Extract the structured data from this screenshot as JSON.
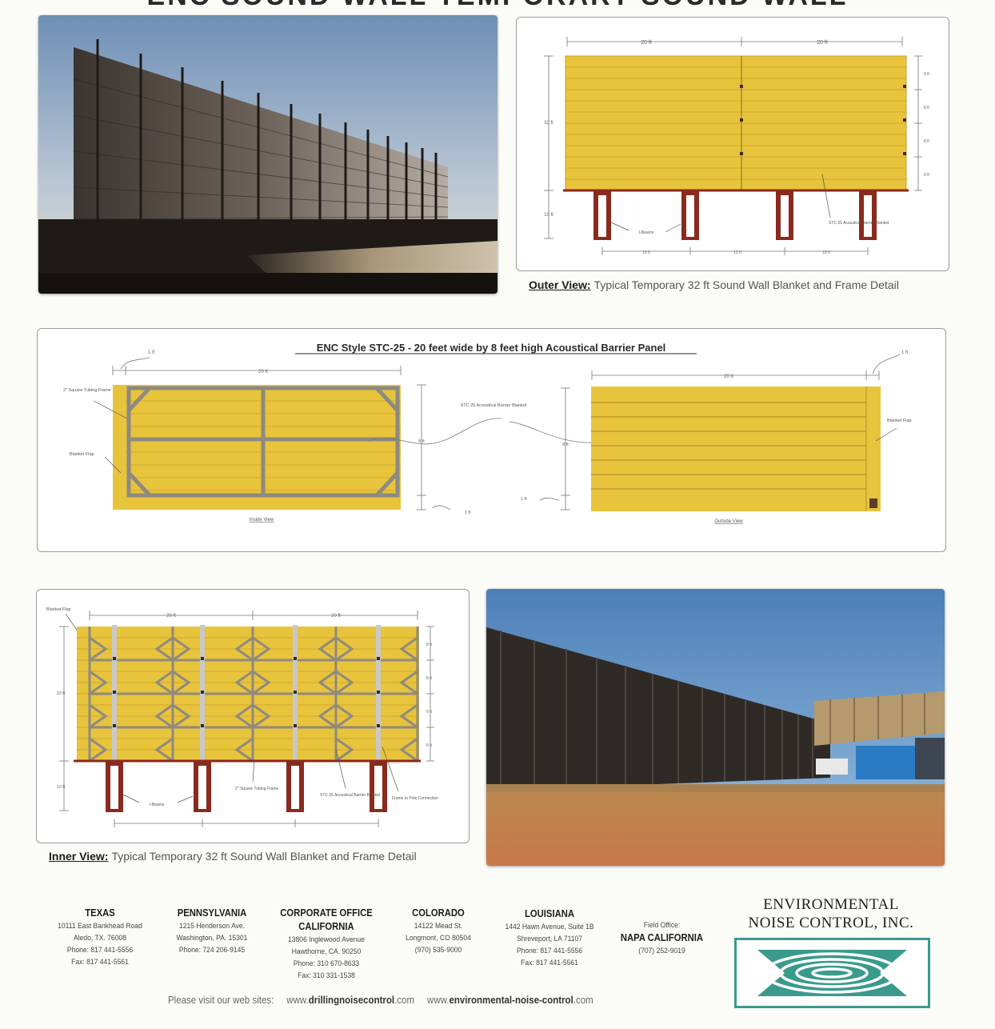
{
  "page": {
    "top_title": "ENC SOUND WALL TEMPORARY SOUND WALL"
  },
  "outer_view": {
    "caption_lead": "Outer View:",
    "caption_text": "Typical Temporary 32 ft Sound Wall  Blanket and Frame Detail",
    "dim_top": [
      "20 ft",
      "20 ft"
    ],
    "dim_height": "32 ft",
    "dim_depth": "10 ft",
    "dim_rows": [
      "8 ft",
      "8 ft",
      "8 ft",
      "8 ft"
    ],
    "dim_bottom": [
      "10 ft",
      "10 ft",
      "10 ft"
    ],
    "label_ibeams": "I-Beams",
    "label_blanket": "STC 25 Acoustical Barrier Blanket"
  },
  "panel_detail": {
    "title": "ENC Style STC-25 - 20 feet wide by 8 feet high Acoustical Barrier Panel",
    "left_dim_flap": "1 ft",
    "left_dim_width": "20 ft",
    "right_dim_width": "20 ft",
    "right_dim_flap": "1 ft",
    "label_tubing": "2\" Square Tubing Frame",
    "label_flap_left": "Blanket Flap",
    "label_blanket": "STC 25 Acoustical Barrier Blanket",
    "label_flap_right": "Blanket Flap",
    "dim_height_left": "8 ft",
    "dim_height_right": "8 ft",
    "dim_bottom_left": "1 ft",
    "dim_bottom_right": "1 ft",
    "inside_label": "Inside View",
    "outside_label": "Outside View"
  },
  "inner_view": {
    "caption_lead": "Inner View:",
    "caption_text": "Typical Temporary 32 ft Sound Wall  Blanket and Frame Detail",
    "label_flap": "Blanket Flap",
    "dim_top": [
      "20 ft",
      "20 ft"
    ],
    "dim_height": "32 ft",
    "dim_depth": "10 ft",
    "dim_rows": [
      "8 ft",
      "8 ft",
      "8 ft",
      "8 ft"
    ],
    "dim_bottom": [
      "10 ft",
      "10 ft",
      "10 ft"
    ],
    "label_ibeams": "I-Beams",
    "label_tubing": "2\" Square Tubing Frame",
    "label_blanket": "STC 25 Acoustical Barrier Blanket",
    "label_connection": "Frame to Pole Connection"
  },
  "offices": [
    {
      "state": "TEXAS",
      "lines": [
        "10111 East Bankhead Road",
        "Aledo, TX. 76008",
        "Phone: 817 441-5556",
        "Fax: 817 441-5561"
      ]
    },
    {
      "state": "PENNSYLVANIA",
      "lines": [
        "1215 Henderson Ave.",
        "Washington, PA. 15301",
        "Phone: 724 206-9145"
      ]
    },
    {
      "state": "CORPORATE OFFICE",
      "state2": "CALIFORNIA",
      "lines": [
        "13806 Inglewood Avenue",
        "Hawthorne, CA. 90250",
        "Phone: 310 670-8633",
        "Fax: 310 331-1538"
      ]
    },
    {
      "state": "COLORADO",
      "lines": [
        "14122 Mead St.",
        "Longmont, CO 80504",
        "(970) 535-9000"
      ]
    },
    {
      "state": "LOUISIANA",
      "lines": [
        "1442 Hawn Avenue, Suite 1B",
        "Shreveport, LA 71107",
        "Phone: 817 441-5556",
        "Fax: 817 441-5561"
      ]
    },
    {
      "prefix": "Field Office:",
      "state": "NAPA CALIFORNIA",
      "lines": [
        "(707) 252-9019"
      ]
    }
  ],
  "company": {
    "line1": "ENVIRONMENTAL",
    "line2": "NOISE CONTROL, INC."
  },
  "websites": {
    "lead": "Please visit our web sites:",
    "site1_a": "www.",
    "site1_b": "drillingnoisecontrol",
    "site1_c": ".com",
    "site2_a": "www.",
    "site2_b": "environmental-noise-control",
    "site2_c": ".com"
  },
  "colors": {
    "blanket_yellow": "#e8c33c",
    "frame_gray": "#8e8a80",
    "beam_red": "#8a2a1e",
    "logo_teal": "#3a9a8c"
  }
}
